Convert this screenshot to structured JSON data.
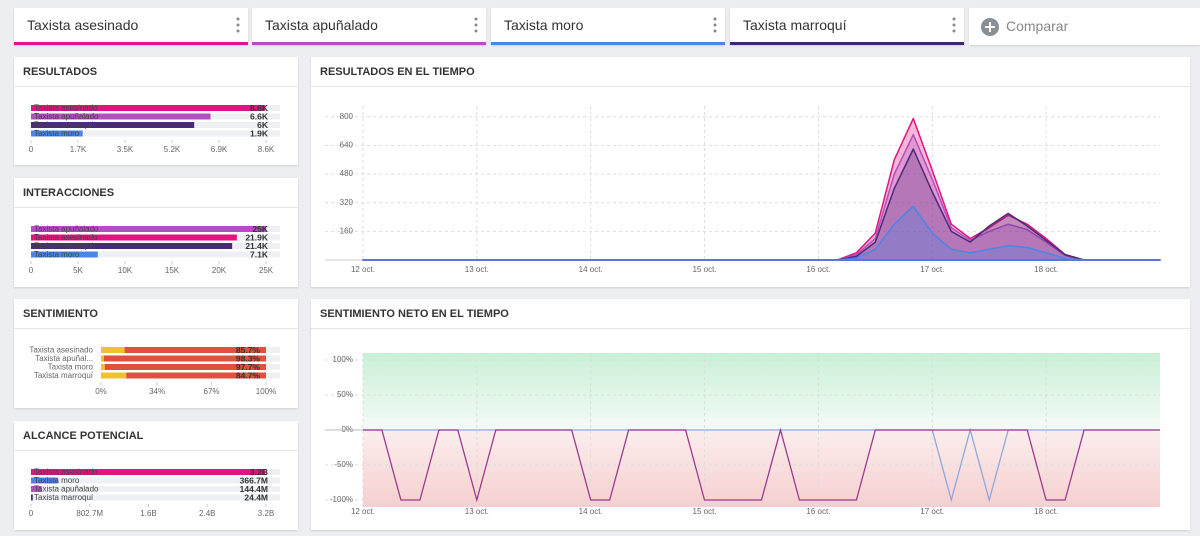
{
  "tabs": [
    {
      "label": "Taxista asesinado",
      "color": "#e0157f"
    },
    {
      "label": "Taxista apuñalado",
      "color": "#b44fbf"
    },
    {
      "label": "Taxista moro",
      "color": "#4a86e8"
    },
    {
      "label": "Taxista marroquí",
      "color": "#3d2a6e"
    }
  ],
  "compare": "Comparar",
  "chart_data": [
    {
      "type": "hbar",
      "title": "RESULTADOS",
      "categories": [
        "Taxista asesinado",
        "Taxista apuñalado",
        "Taxista marroquí",
        "Taxista moro"
      ],
      "values": [
        8600,
        6600,
        6000,
        1900
      ],
      "value_labels": [
        "8.6K",
        "6.6K",
        "6K",
        "1.9K"
      ],
      "colors": [
        "#e0157f",
        "#b44fbf",
        "#4b2a7a",
        "#4a86e8"
      ],
      "xlim": [
        0,
        8640
      ],
      "xticks": [
        0,
        {
          "value": 1728,
          "label": "1.7K"
        },
        {
          "value": 3456,
          "label": "3.5K"
        },
        {
          "value": 5184,
          "label": "5.2K"
        },
        {
          "value": 6912,
          "label": "6.9K"
        },
        {
          "value": 8640,
          "label": "8.6K"
        }
      ]
    },
    {
      "type": "hbar",
      "title": "INTERACCIONES",
      "categories": [
        "Taxista apuñalado",
        "Taxista asesinado",
        "Taxista marroquí",
        "Taxista moro"
      ],
      "values": [
        25000,
        21900,
        21400,
        7100
      ],
      "value_labels": [
        "25K",
        "21.9K",
        "21.4K",
        "7.1K"
      ],
      "colors": [
        "#b44fbf",
        "#e0157f",
        "#4b2a7a",
        "#4a86e8"
      ],
      "xlim": [
        0,
        25000
      ],
      "xticks": [
        0,
        {
          "value": 5000,
          "label": "5K"
        },
        {
          "value": 10000,
          "label": "10K"
        },
        {
          "value": 15000,
          "label": "15K"
        },
        {
          "value": 20000,
          "label": "20K"
        },
        {
          "value": 25000,
          "label": "25K"
        }
      ]
    },
    {
      "type": "stacked_hbar",
      "title": "SENTIMIENTO",
      "categories": [
        "Taxista asesinado",
        "Taxista apuñal...",
        "Taxista moro",
        "Taxista marroquí"
      ],
      "series": [
        {
          "color": "#f2c12e",
          "values": [
            14.3,
            1.7,
            2.3,
            15.3
          ]
        },
        {
          "color": "#e0503c",
          "values": [
            85.7,
            98.3,
            97.7,
            84.7
          ],
          "value_labels": [
            "85.7%",
            "98.3%",
            "97.7%",
            "84.7%"
          ]
        }
      ],
      "xlim": [
        0,
        100
      ],
      "xticks": [
        {
          "value": 0,
          "label": "0%"
        },
        {
          "value": 34,
          "label": "34%"
        },
        {
          "value": 67,
          "label": "67%"
        },
        {
          "value": 100,
          "label": "100%"
        }
      ]
    },
    {
      "type": "hbar",
      "title": "ALCANCE POTENCIAL",
      "categories": [
        "Taxista asesinado",
        "Taxista moro",
        "Taxista apuñalado",
        "Taxista marroquí"
      ],
      "values": [
        3200000000,
        366700000,
        144400000,
        24400000
      ],
      "value_labels": [
        "3.2B",
        "366.7M",
        "144.4M",
        "24.4M"
      ],
      "colors": [
        "#e0157f",
        "#4a86e8",
        "#b44fbf",
        "#4b2a7a"
      ],
      "xlim": [
        0,
        3210800000
      ],
      "xticks": [
        0,
        {
          "value": 802700000,
          "label": "802.7M"
        },
        {
          "value": 1605400000,
          "label": "1.6B"
        },
        {
          "value": 2408100000,
          "label": "2.4B"
        },
        {
          "value": 3210800000,
          "label": "3.2B"
        }
      ]
    },
    {
      "type": "area",
      "title": "RESULTADOS EN EL TIEMPO",
      "grid": true,
      "x": [
        0,
        4,
        8,
        12,
        16,
        20,
        24,
        28,
        32,
        36,
        40,
        44,
        48,
        52,
        56,
        60,
        64,
        68,
        72,
        76,
        80,
        84,
        88,
        92,
        96,
        100,
        104,
        108,
        112,
        116,
        120,
        124,
        128,
        132,
        136,
        140,
        144,
        148,
        152,
        156,
        160,
        164,
        168
      ],
      "xlim": [
        -8,
        168
      ],
      "xticks": [
        {
          "value": 0,
          "label": "12 oct."
        },
        {
          "value": 24,
          "label": "13 oct."
        },
        {
          "value": 48,
          "label": "14 oct."
        },
        {
          "value": 72,
          "label": "15 oct."
        },
        {
          "value": 96,
          "label": "16 oct."
        },
        {
          "value": 120,
          "label": "17 oct."
        },
        {
          "value": 144,
          "label": "18 oct."
        }
      ],
      "ylim": [
        0,
        860
      ],
      "yticks": [
        160,
        320,
        480,
        640,
        800
      ],
      "series": [
        {
          "color": "#e0157f",
          "values": [
            0,
            0,
            0,
            0,
            0,
            0,
            0,
            0,
            0,
            0,
            0,
            0,
            0,
            0,
            0,
            0,
            0,
            0,
            0,
            0,
            0,
            0,
            0,
            0,
            0,
            0,
            40,
            150,
            560,
            790,
            500,
            200,
            120,
            180,
            250,
            200,
            120,
            30,
            0,
            0,
            0,
            0,
            0
          ]
        },
        {
          "color": "#b44fbf",
          "values": [
            0,
            0,
            0,
            0,
            0,
            0,
            0,
            0,
            0,
            0,
            0,
            0,
            0,
            0,
            0,
            0,
            0,
            0,
            0,
            0,
            0,
            0,
            0,
            0,
            0,
            0,
            30,
            120,
            480,
            700,
            450,
            180,
            110,
            160,
            200,
            170,
            100,
            25,
            0,
            0,
            0,
            0,
            0
          ]
        },
        {
          "color": "#4b2a7a",
          "values": [
            0,
            0,
            0,
            0,
            0,
            0,
            0,
            0,
            0,
            0,
            0,
            0,
            0,
            0,
            0,
            0,
            0,
            0,
            0,
            0,
            0,
            0,
            0,
            0,
            0,
            0,
            20,
            100,
            400,
            620,
            380,
            160,
            100,
            190,
            260,
            190,
            110,
            30,
            0,
            0,
            0,
            0,
            0
          ]
        },
        {
          "color": "#4a86e8",
          "values": [
            0,
            0,
            0,
            0,
            0,
            0,
            0,
            0,
            0,
            0,
            0,
            0,
            0,
            0,
            0,
            0,
            0,
            0,
            0,
            0,
            0,
            0,
            0,
            0,
            0,
            0,
            10,
            60,
            200,
            300,
            150,
            60,
            40,
            60,
            80,
            70,
            40,
            10,
            0,
            0,
            0,
            0,
            0
          ]
        }
      ]
    },
    {
      "type": "line",
      "title": "SENTIMIENTO NETO EN EL TIEMPO",
      "grid": true,
      "x": [
        0,
        4,
        8,
        12,
        16,
        20,
        24,
        28,
        32,
        36,
        40,
        44,
        48,
        52,
        56,
        60,
        64,
        68,
        72,
        76,
        80,
        84,
        88,
        92,
        96,
        100,
        104,
        108,
        112,
        116,
        120,
        124,
        128,
        132,
        136,
        140,
        144,
        148,
        152,
        156,
        160,
        164,
        168
      ],
      "xlim": [
        -8,
        168
      ],
      "xticks": [
        {
          "value": 0,
          "label": "12 oct."
        },
        {
          "value": 24,
          "label": "13 oct."
        },
        {
          "value": 48,
          "label": "14 oct."
        },
        {
          "value": 72,
          "label": "15 oct."
        },
        {
          "value": 96,
          "label": "16 oct."
        },
        {
          "value": 120,
          "label": "17 oct."
        },
        {
          "value": 144,
          "label": "18 oct."
        }
      ],
      "ylim": [
        -110,
        110
      ],
      "yticks": [
        {
          "value": 100,
          "label": "100%"
        },
        {
          "value": 50,
          "label": "50%"
        },
        {
          "value": 0,
          "label": "0%"
        },
        {
          "value": -50,
          "label": "-50%"
        },
        {
          "value": -100,
          "label": "-100%"
        }
      ],
      "series": [
        {
          "color": "#8fa8d8",
          "values": [
            0,
            0,
            0,
            0,
            0,
            0,
            0,
            0,
            0,
            0,
            0,
            0,
            0,
            0,
            0,
            0,
            0,
            0,
            0,
            0,
            0,
            0,
            0,
            0,
            0,
            0,
            0,
            0,
            0,
            0,
            0,
            -100,
            0,
            -100,
            0,
            0,
            0,
            0,
            0,
            0,
            0,
            0,
            0
          ]
        },
        {
          "color": "#9b3a8c",
          "values": [
            0,
            0,
            -100,
            -100,
            0,
            0,
            -100,
            0,
            0,
            0,
            0,
            0,
            -100,
            -100,
            0,
            0,
            0,
            0,
            -100,
            -100,
            -100,
            -100,
            0,
            -100,
            -100,
            -100,
            -100,
            0,
            0,
            0,
            0,
            0,
            0,
            0,
            0,
            0,
            -100,
            -100,
            0,
            0,
            0,
            0,
            0
          ]
        }
      ]
    }
  ]
}
